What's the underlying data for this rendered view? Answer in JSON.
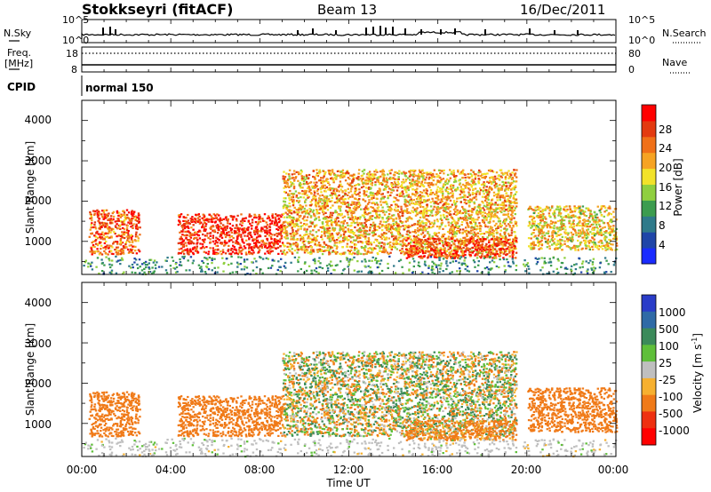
{
  "header": {
    "station": "Stokkseyri (fitACF)",
    "beam": "Beam 13",
    "date": "16/Dec/2011"
  },
  "noise_panel": {
    "left_label": "N.Sky",
    "right_label": "N.Search",
    "ticks_left": [
      "10^5",
      "10^0"
    ],
    "ticks_right": [
      "10^5",
      "10^0"
    ]
  },
  "freq_panel": {
    "left_label_line1": "Freq.",
    "left_label_line2": "[MHz]",
    "right_label": "Nave",
    "ticks_left": [
      "18",
      "8"
    ],
    "ticks_right": [
      "80",
      "0"
    ]
  },
  "cpid_panel": {
    "label": "CPID",
    "mode": "normal 150"
  },
  "range_axis": {
    "label": "Slant Range [km]",
    "ticks": [
      "1000",
      "2000",
      "3000",
      "4000"
    ]
  },
  "time_axis": {
    "label": "Time UT",
    "ticks": [
      "00:00",
      "04:00",
      "08:00",
      "12:00",
      "16:00",
      "20:00",
      "00:00"
    ]
  },
  "power_scale": {
    "label": "Power [dB]",
    "ticks": [
      "4",
      "8",
      "12",
      "16",
      "20",
      "24",
      "28"
    ],
    "colors": [
      "#1a2bff",
      "#1f45a8",
      "#2f7a8a",
      "#3c9c4f",
      "#8fcf3f",
      "#f2e22a",
      "#f6a323",
      "#f07018",
      "#e33a10",
      "#ff0000"
    ]
  },
  "velocity_scale": {
    "label": "Velocity [m s",
    "label_sup": "-1",
    "label_end": "]",
    "ticks": [
      "1000",
      "500",
      "100",
      "25",
      "-25",
      "-100",
      "-500",
      "-1000"
    ],
    "colors": [
      "#2a3cc8",
      "#2f6aa6",
      "#3b8a5a",
      "#5fbf3a",
      "#bfbfbf",
      "#f6b030",
      "#f07a18",
      "#ee3010",
      "#ff0000"
    ]
  },
  "chart_data": {
    "type": "heatmap",
    "panels": [
      {
        "name": "Power",
        "quantity": "Power [dB]",
        "range_km": [
          180,
          4500
        ],
        "zlim": [
          0,
          30
        ]
      },
      {
        "name": "Velocity",
        "quantity": "Velocity [m s-1]",
        "range_km": [
          180,
          4500
        ],
        "zlim": [
          -1000,
          1000
        ]
      }
    ],
    "xlim_hours": [
      0,
      24
    ],
    "xlabel": "Time UT",
    "ylabel": "Slant Range [km]",
    "features": [
      {
        "time_h": [
          0.3,
          2.6
        ],
        "range_km": [
          700,
          1800
        ],
        "power_db": 24,
        "velocity": -300
      },
      {
        "time_h": [
          4.3,
          9.0
        ],
        "range_km": [
          700,
          1700
        ],
        "power_db": 28,
        "velocity": -300
      },
      {
        "time_h": [
          9.0,
          19.5
        ],
        "range_km": [
          700,
          2800
        ],
        "power_db": 20,
        "velocity": 0
      },
      {
        "time_h": [
          14.5,
          19.5
        ],
        "range_km": [
          600,
          1100
        ],
        "power_db": 26,
        "velocity": -200
      },
      {
        "time_h": [
          20.0,
          24.0
        ],
        "range_km": [
          800,
          1900
        ],
        "power_db": 18,
        "velocity": -300
      }
    ]
  }
}
